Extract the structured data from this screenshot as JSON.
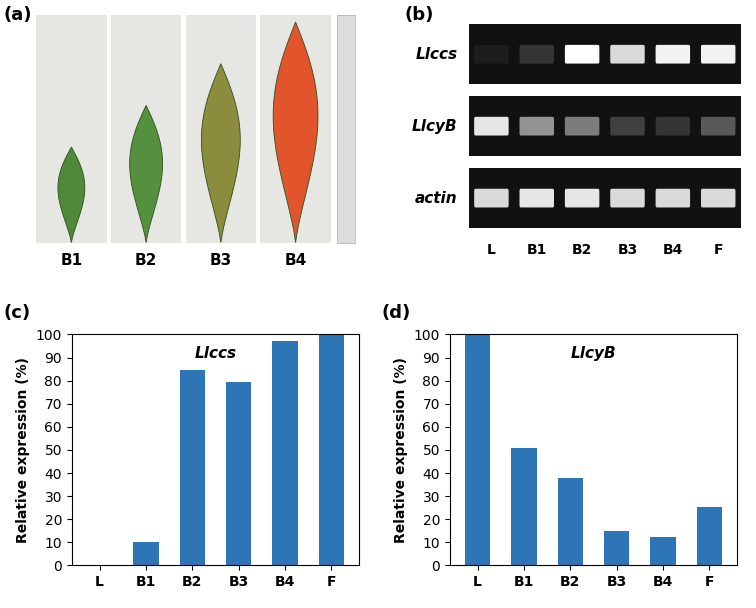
{
  "panels": [
    {
      "label": "(a)",
      "type": "photo",
      "items": [
        "B1",
        "B2",
        "B3",
        "B4"
      ]
    },
    {
      "label": "(b)",
      "type": "gel",
      "lanes": [
        "L",
        "B1",
        "B2",
        "B3",
        "B4",
        "F"
      ],
      "rows": [
        {
          "name": "Llccs",
          "band_intensity": [
            5,
            15,
            100,
            85,
            95,
            95
          ]
        },
        {
          "name": "LlcyB",
          "band_intensity": [
            90,
            55,
            45,
            20,
            15,
            30
          ]
        },
        {
          "name": "actin",
          "band_intensity": [
            85,
            90,
            90,
            85,
            85,
            85
          ]
        }
      ]
    }
  ],
  "chart_data": [
    {
      "label": "(c)",
      "type": "bar",
      "title": "Llccs",
      "categories": [
        "L",
        "B1",
        "B2",
        "B3",
        "B4",
        "F"
      ],
      "values": [
        0,
        10,
        84.5,
        79.5,
        97,
        100
      ],
      "color": "#2e75b6",
      "y_label": "Relative expression (%)",
      "ylim": [
        0,
        100
      ],
      "yticks": [
        0,
        10,
        20,
        30,
        40,
        50,
        60,
        70,
        80,
        90,
        100
      ],
      "grid": false
    },
    {
      "label": "(d)",
      "type": "bar",
      "title": "LlcyB",
      "categories": [
        "L",
        "B1",
        "B2",
        "B3",
        "B4",
        "F"
      ],
      "values": [
        100,
        51,
        38,
        15,
        12.5,
        25.5
      ],
      "color": "#2e75b6",
      "y_label": "Relative expression (%)",
      "ylim": [
        0,
        100
      ],
      "yticks": [
        0,
        10,
        20,
        30,
        40,
        50,
        60,
        70,
        80,
        90,
        100
      ],
      "grid": false
    }
  ]
}
